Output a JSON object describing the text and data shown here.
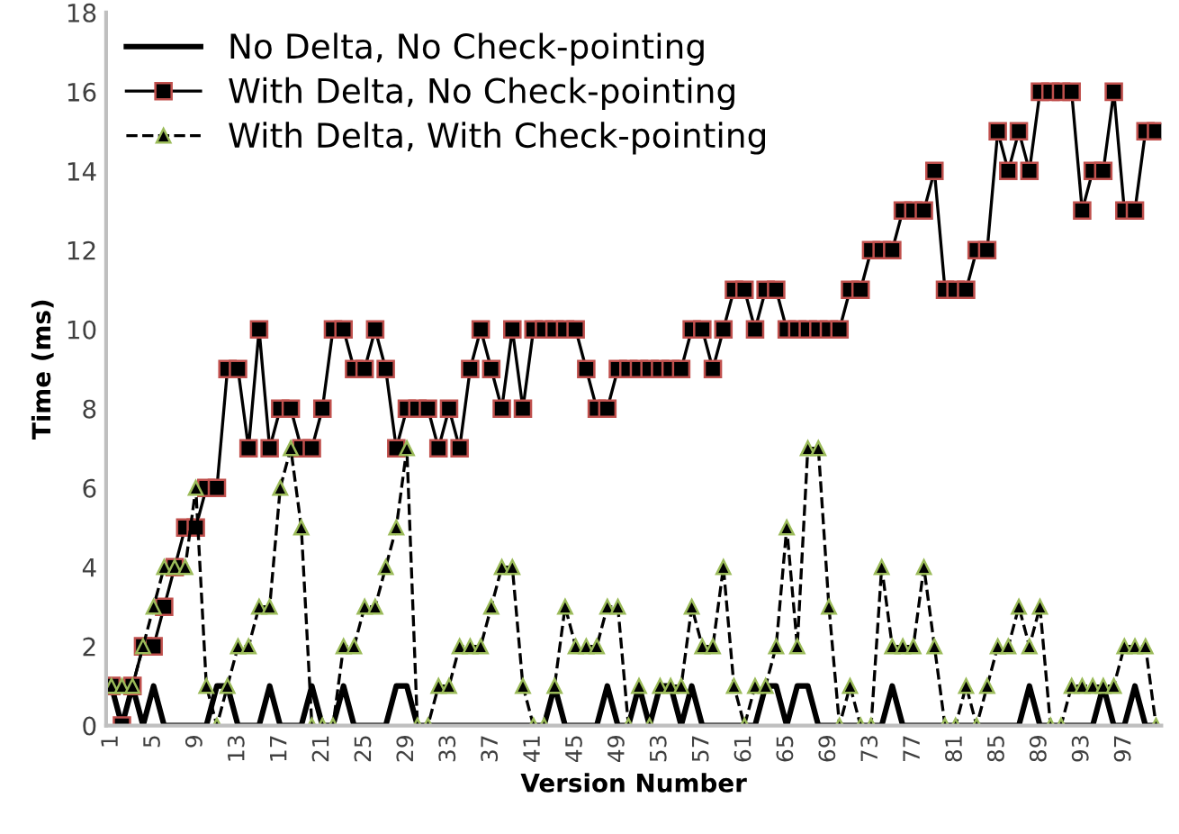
{
  "chart_data": {
    "type": "line",
    "xlabel": "Version Number",
    "ylabel": "Time (ms)",
    "categories": [
      "1",
      null,
      null,
      null,
      "5",
      null,
      null,
      null,
      "9",
      null,
      null,
      null,
      "13",
      null,
      null,
      null,
      "17",
      null,
      null,
      null,
      "21",
      null,
      null,
      null,
      "25",
      null,
      null,
      null,
      "29",
      null,
      null,
      null,
      "33",
      null,
      null,
      null,
      "37",
      null,
      null,
      null,
      "41",
      null,
      null,
      null,
      "45",
      null,
      null,
      null,
      "49",
      null,
      null,
      null,
      "53",
      null,
      null,
      null,
      "57",
      null,
      null,
      null,
      "61",
      null,
      null,
      null,
      "65",
      null,
      null,
      null,
      "69",
      null,
      null,
      null,
      "73",
      null,
      null,
      null,
      "77",
      null,
      null,
      null,
      "81",
      null,
      null,
      null,
      "85",
      null,
      null,
      null,
      "89",
      null,
      null,
      null,
      "93",
      null,
      null,
      null,
      "97",
      null,
      null,
      null
    ],
    "ylim": [
      0,
      18
    ],
    "yticks": [
      0,
      2,
      4,
      6,
      8,
      10,
      12,
      14,
      16,
      18
    ],
    "grid": false,
    "legend": "top left",
    "series": [
      {
        "name": "No Delta, No Check-pointing",
        "color": "#000000",
        "marker": "none",
        "line_style": "solid",
        "values": [
          1,
          0,
          1,
          0,
          1,
          0,
          0,
          0,
          0,
          0,
          1,
          1,
          0,
          0,
          0,
          1,
          0,
          0,
          0,
          1,
          0,
          0,
          1,
          0,
          0,
          0,
          0,
          1,
          1,
          0,
          0,
          0,
          0,
          0,
          0,
          0,
          0,
          0,
          0,
          0,
          0,
          0,
          1,
          0,
          0,
          0,
          0,
          1,
          0,
          0,
          1,
          0,
          1,
          1,
          0,
          1,
          0,
          0,
          0,
          0,
          0,
          0,
          1,
          1,
          0,
          1,
          1,
          0,
          0,
          0,
          0,
          0,
          0,
          0,
          1,
          0,
          0,
          0,
          0,
          0,
          0,
          0,
          0,
          0,
          0,
          0,
          0,
          1,
          0,
          0,
          0,
          0,
          0,
          0,
          1,
          0,
          0,
          1,
          0,
          0
        ]
      },
      {
        "name": "With Delta, No Check-pointing",
        "color": "#c0504d",
        "marker": "square",
        "line_style": "solid",
        "values": [
          1,
          0,
          1,
          2,
          2,
          3,
          4,
          5,
          5,
          6,
          6,
          9,
          9,
          7,
          10,
          7,
          8,
          8,
          7,
          7,
          8,
          10,
          10,
          9,
          9,
          10,
          9,
          7,
          8,
          8,
          8,
          7,
          8,
          7,
          9,
          10,
          9,
          8,
          10,
          8,
          10,
          10,
          10,
          10,
          10,
          9,
          8,
          8,
          9,
          9,
          9,
          9,
          9,
          9,
          9,
          10,
          10,
          9,
          10,
          11,
          11,
          10,
          11,
          11,
          10,
          10,
          10,
          10,
          10,
          10,
          11,
          11,
          12,
          12,
          12,
          13,
          13,
          13,
          14,
          11,
          11,
          11,
          12,
          12,
          15,
          14,
          15,
          14,
          16,
          16,
          16,
          16,
          13,
          14,
          14,
          16,
          13,
          13,
          15,
          15
        ]
      },
      {
        "name": "With Delta, With Check-pointing",
        "color": "#9bbb59",
        "marker": "triangle",
        "line_style": "dashed",
        "values": [
          1,
          1,
          1,
          2,
          3,
          4,
          4,
          4,
          6,
          1,
          0,
          1,
          2,
          2,
          3,
          3,
          6,
          7,
          5,
          0,
          0,
          0,
          2,
          2,
          3,
          3,
          4,
          5,
          7,
          0,
          0,
          1,
          1,
          2,
          2,
          2,
          3,
          4,
          4,
          1,
          0,
          0,
          1,
          3,
          2,
          2,
          2,
          3,
          3,
          0,
          1,
          0,
          1,
          1,
          1,
          3,
          2,
          2,
          4,
          1,
          0,
          1,
          1,
          2,
          5,
          2,
          7,
          7,
          3,
          0,
          1,
          0,
          0,
          4,
          2,
          2,
          2,
          4,
          2,
          0,
          0,
          1,
          0,
          1,
          2,
          2,
          3,
          2,
          3,
          0,
          0,
          1,
          1,
          1,
          1,
          1,
          2,
          2,
          2,
          0
        ]
      }
    ]
  }
}
